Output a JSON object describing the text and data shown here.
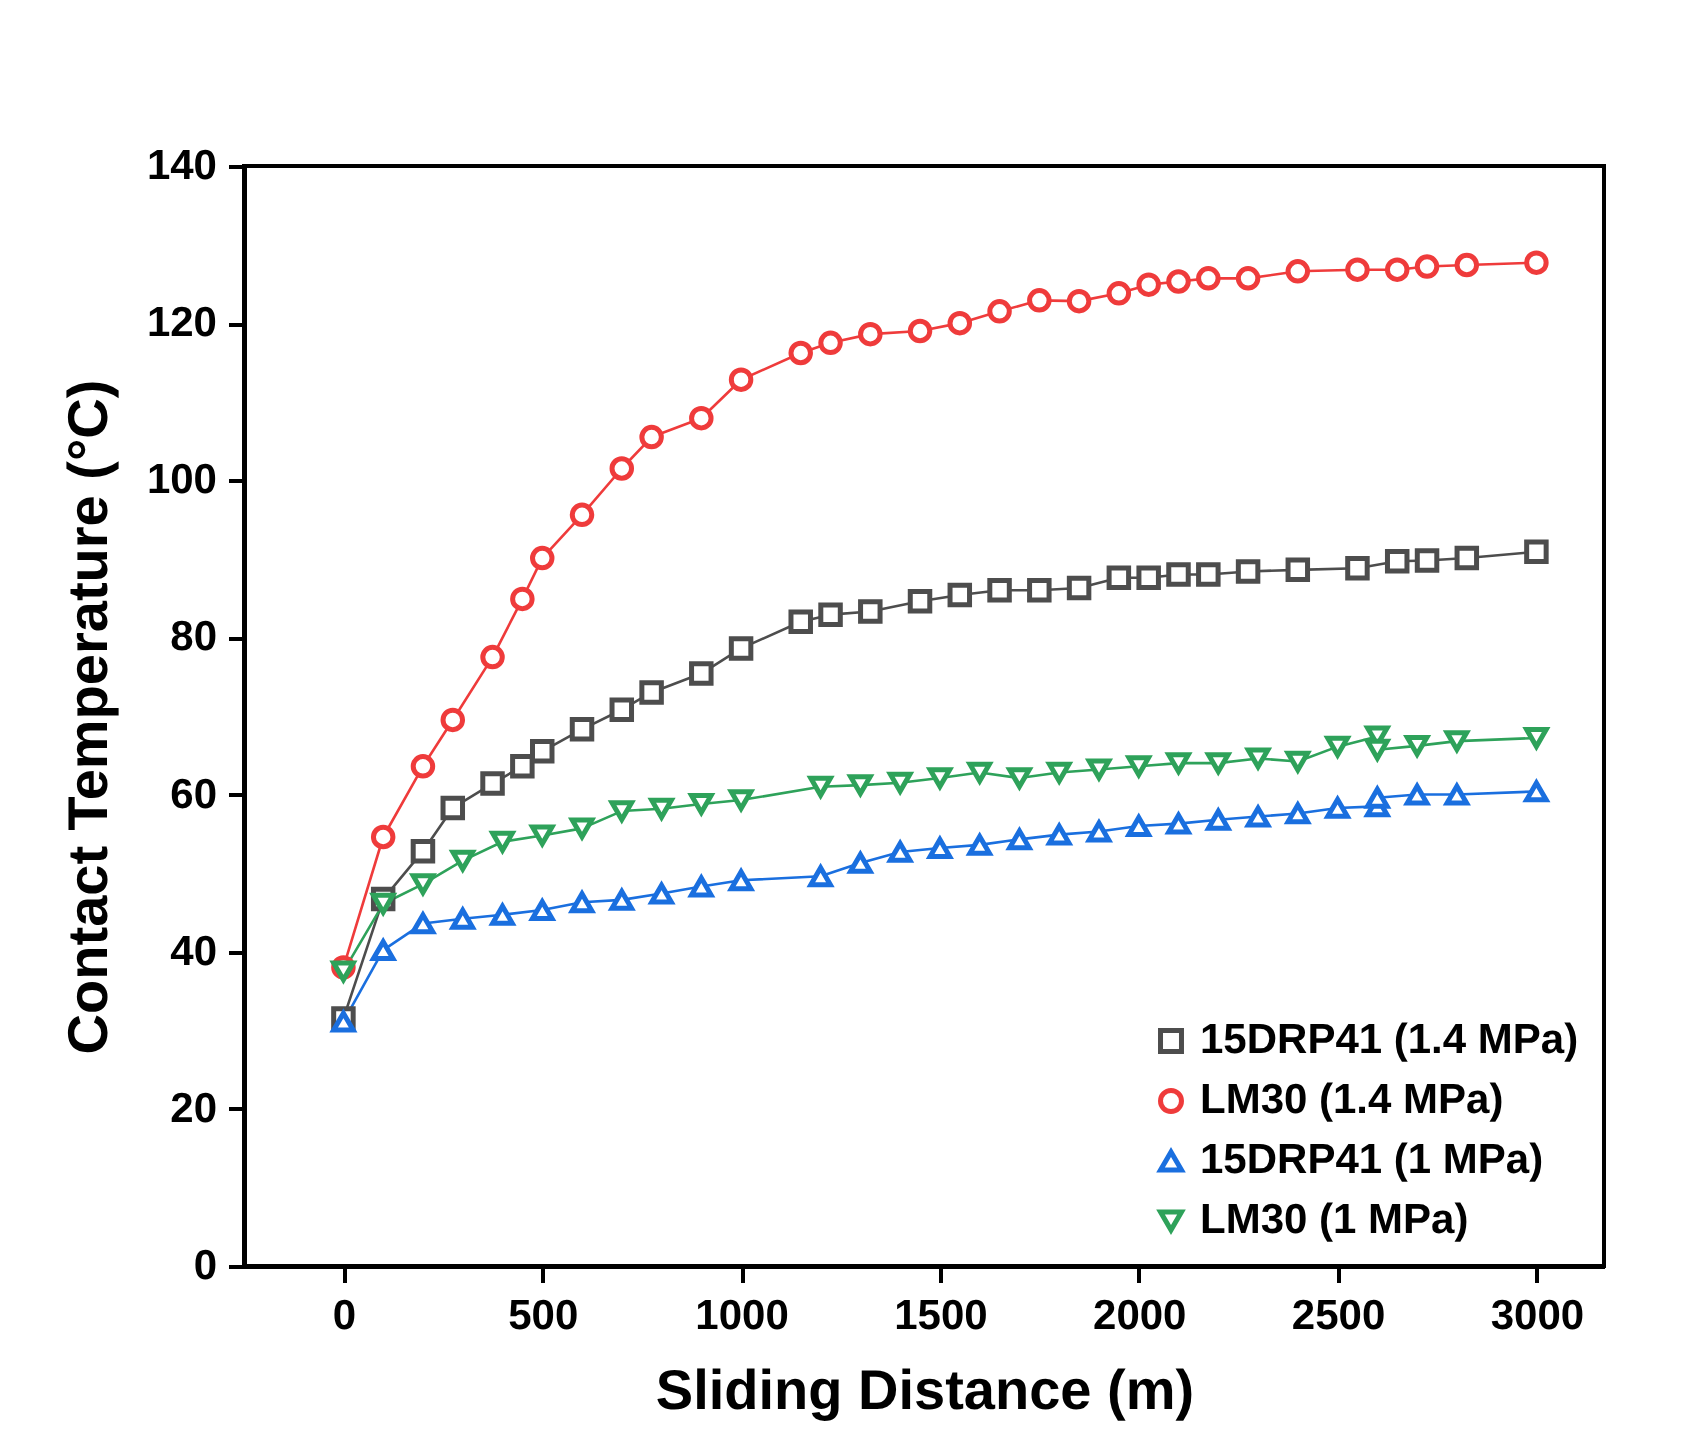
{
  "chart_data": {
    "type": "line",
    "xlabel": "Sliding Distance (m)",
    "ylabel": "Contact Temperature (°C)",
    "xlim": [
      -250,
      3170
    ],
    "xticks": [
      0,
      500,
      1000,
      1500,
      2000,
      2500,
      3000
    ],
    "ylim": [
      0,
      140
    ],
    "yticks": [
      0,
      20,
      40,
      60,
      80,
      100,
      120,
      140
    ],
    "grid": false,
    "legend": "bottom right",
    "line_style": "solid",
    "series": [
      {
        "name": "15DRP41 (1.4 MPa)",
        "color": "#4d4d4d",
        "marker": "square",
        "x": [
          0,
          100,
          200,
          275,
          375,
          450,
          500,
          600,
          700,
          775,
          900,
          1000,
          1150,
          1225,
          1325,
          1450,
          1550,
          1650,
          1750,
          1850,
          1950,
          2025,
          2100,
          2175,
          2275,
          2400,
          2550,
          2650,
          2725,
          2825,
          3000
        ],
        "values": [
          31.5,
          46.7,
          52.8,
          58.3,
          61.4,
          63.6,
          65.5,
          68.3,
          70.8,
          73,
          75.4,
          78.6,
          82,
          82.9,
          83.3,
          84.6,
          85.4,
          86,
          86,
          86.3,
          87.6,
          87.6,
          88,
          88,
          88.4,
          88.6,
          88.8,
          89.7,
          89.8,
          90.1,
          90.9
        ]
      },
      {
        "name": "LM30 (1.4 MPa)",
        "color": "#ef3b3b",
        "marker": "circle",
        "x": [
          0,
          100,
          200,
          275,
          375,
          450,
          500,
          600,
          700,
          775,
          900,
          1000,
          1150,
          1225,
          1325,
          1450,
          1550,
          1650,
          1750,
          1850,
          1950,
          2025,
          2100,
          2175,
          2275,
          2400,
          2550,
          2650,
          2725,
          2825,
          3000
        ],
        "values": [
          38,
          54.6,
          63.6,
          69.5,
          77.5,
          84.9,
          90.1,
          95.6,
          101.5,
          105.5,
          107.9,
          112.8,
          116.2,
          117.5,
          118.6,
          119,
          120,
          121.5,
          122.9,
          122.8,
          123.8,
          124.9,
          125.3,
          125.7,
          125.7,
          126.6,
          126.8,
          126.8,
          127.2,
          127.4,
          127.7
        ]
      },
      {
        "name": "15DRP41 (1 MPa)",
        "color": "#1a6fdf",
        "marker": "triangle",
        "x": [
          0,
          100,
          200,
          300,
          400,
          500,
          600,
          700,
          800,
          900,
          1000,
          1200,
          1300,
          1400,
          1500,
          1600,
          1700,
          1800,
          1900,
          2000,
          2100,
          2200,
          2300,
          2400,
          2500,
          2600,
          2600,
          2700,
          2800,
          3000
        ],
        "values": [
          31.1,
          40.2,
          43.6,
          44.2,
          44.7,
          45.3,
          46.3,
          46.6,
          47.4,
          48.3,
          49.1,
          49.6,
          51.3,
          52.7,
          53.2,
          53.6,
          54.3,
          54.9,
          55.3,
          56,
          56.3,
          56.8,
          57.2,
          57.6,
          58.3,
          58.5,
          59.6,
          60,
          60,
          60.4
        ]
      },
      {
        "name": "LM30 (1 MPa)",
        "color": "#2ea25a",
        "marker": "triangle-down",
        "x": [
          0,
          100,
          200,
          300,
          400,
          500,
          600,
          700,
          800,
          900,
          1000,
          1200,
          1300,
          1400,
          1500,
          1600,
          1700,
          1800,
          1900,
          2000,
          2100,
          2200,
          2300,
          2400,
          2500,
          2600,
          2600,
          2700,
          2800,
          3000
        ],
        "values": [
          37.5,
          46.1,
          48.6,
          51.6,
          54,
          54.8,
          55.7,
          57.9,
          58.2,
          58.8,
          59.3,
          61,
          61.2,
          61.5,
          62.1,
          62.8,
          62.1,
          62.8,
          63.2,
          63.6,
          64,
          64,
          64.6,
          64.2,
          66.1,
          67.4,
          65.7,
          66.2,
          66.8,
          67.2
        ]
      }
    ]
  }
}
